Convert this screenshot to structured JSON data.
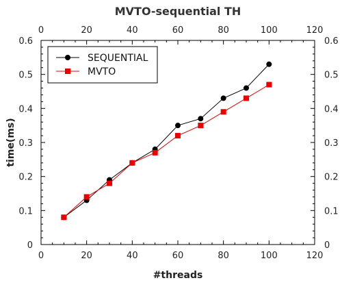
{
  "chart_data": {
    "type": "line",
    "title": "MVTO-sequential TH",
    "xlabel": "#threads",
    "ylabel": "time(ms)",
    "xlim": [
      0,
      120
    ],
    "ylim": [
      0,
      0.6
    ],
    "x_ticks": [
      "0",
      "20",
      "40",
      "60",
      "80",
      "100",
      "120"
    ],
    "y_ticks": [
      "0",
      "0.1",
      "0.2",
      "0.3",
      "0.4",
      "0.5",
      "0.6"
    ],
    "grid": false,
    "legend_position": "top-left",
    "x": [
      10,
      20,
      30,
      40,
      50,
      60,
      70,
      80,
      90,
      100
    ],
    "series": [
      {
        "name": "SEQUENTIAL",
        "color": "#000000",
        "marker": "circle",
        "values": [
          0.08,
          0.13,
          0.19,
          0.24,
          0.28,
          0.35,
          0.37,
          0.43,
          0.46,
          0.53
        ]
      },
      {
        "name": "MVTO",
        "color": "#ee0000",
        "marker": "square",
        "values": [
          0.08,
          0.14,
          0.18,
          0.24,
          0.27,
          0.32,
          0.35,
          0.39,
          0.43,
          0.47
        ]
      }
    ]
  }
}
